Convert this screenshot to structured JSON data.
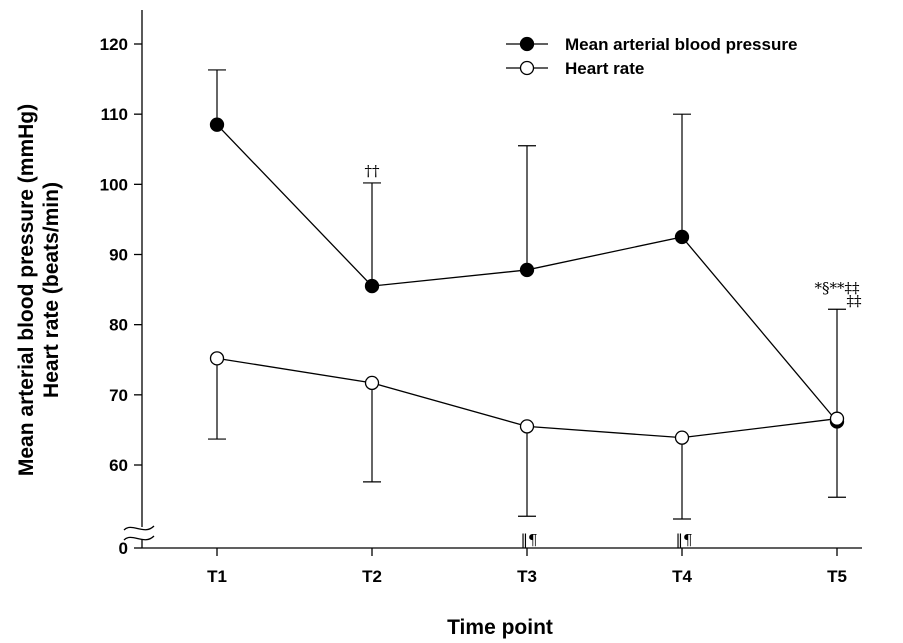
{
  "chart_data": {
    "type": "line",
    "categories": [
      "T1",
      "T2",
      "T3",
      "T4",
      "T5"
    ],
    "xlabel": "Time point",
    "ylabel_lines": [
      "Mean arterial blood pressure (mmHg)",
      "Heart rate (beats/min)"
    ],
    "ylim": [
      50,
      125
    ],
    "y_axis_break": true,
    "y_ticks": [
      120,
      110,
      100,
      90,
      80,
      70,
      60
    ],
    "y_break_label": "0",
    "grid": false,
    "legend_position": "top-right",
    "series": [
      {
        "name": "Mean arterial blood pressure",
        "marker": "filled-circle",
        "values": [
          108.5,
          85.5,
          87.8,
          92.5,
          66.2
        ],
        "error_upper": [
          116.3,
          100.2,
          105.5,
          110.0,
          82.2
        ],
        "error_lower": [
          null,
          null,
          null,
          null,
          55.4
        ]
      },
      {
        "name": "Heart rate",
        "marker": "open-circle",
        "values": [
          75.2,
          71.7,
          65.5,
          63.9,
          66.6
        ],
        "error_lower": [
          63.7,
          57.6,
          52.7,
          52.3,
          null
        ],
        "error_upper": [
          null,
          null,
          null,
          null,
          null
        ]
      }
    ],
    "annotations": [
      {
        "category": "T2",
        "text": "††",
        "position": "above"
      },
      {
        "category": "T3",
        "text": "‖¶",
        "position": "below"
      },
      {
        "category": "T4",
        "text": "‖¶",
        "position": "below"
      },
      {
        "category": "T5",
        "text_line1": "*§**‡‡",
        "text_line2": "‡‡",
        "position": "above"
      }
    ]
  },
  "colors": {
    "ink": "#000000",
    "background": "#ffffff"
  }
}
